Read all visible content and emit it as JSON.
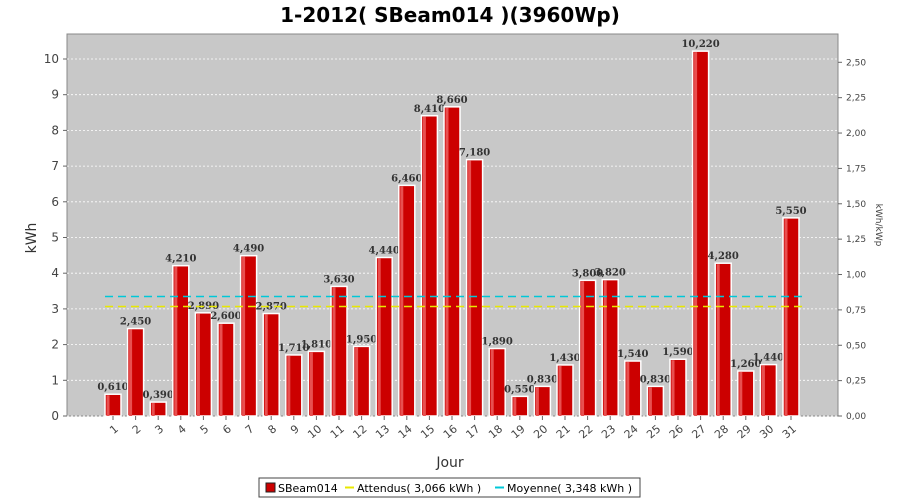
{
  "chart_data": {
    "type": "bar",
    "title": "1-2012( SBeam014 )(3960Wp)",
    "xlabel": "Jour",
    "ylabel": "kWh",
    "ylabel_right": "kWh/kWp",
    "ylim": [
      0,
      10.7
    ],
    "yticks": [
      "0",
      "1",
      "2",
      "3",
      "4",
      "5",
      "6",
      "7",
      "8",
      "9",
      "10"
    ],
    "ylim_right": [
      0,
      2.7
    ],
    "yticks_right": [
      "0,00",
      "0,25",
      "0,50",
      "0,75",
      "1,00",
      "1,25",
      "1,50",
      "1,75",
      "2,00",
      "2,25",
      "2,50"
    ],
    "grid": true,
    "categories": [
      "1",
      "2",
      "3",
      "4",
      "5",
      "6",
      "7",
      "8",
      "9",
      "10",
      "11",
      "12",
      "13",
      "14",
      "15",
      "16",
      "17",
      "18",
      "19",
      "20",
      "21",
      "22",
      "23",
      "24",
      "25",
      "26",
      "27",
      "28",
      "29",
      "30",
      "31"
    ],
    "series": [
      {
        "name": "SBeam014",
        "color": "#cc0000",
        "values": [
          0.61,
          2.45,
          0.39,
          4.21,
          2.89,
          2.6,
          4.49,
          2.87,
          1.71,
          1.81,
          3.63,
          1.95,
          4.44,
          6.46,
          8.41,
          8.66,
          7.18,
          1.89,
          0.55,
          0.83,
          1.43,
          3.8,
          3.82,
          1.54,
          0.83,
          1.59,
          10.22,
          4.28,
          1.26,
          1.44,
          5.55
        ],
        "labels": [
          "0,610",
          "2,450",
          "0,390",
          "4,210",
          "2,890",
          "2,600",
          "4,490",
          "2,870",
          "1,710",
          "1,810",
          "3,630",
          "1,950",
          "4,440",
          "6,460",
          "8,410",
          "8,660",
          "7,180",
          "1,890",
          "0,550",
          "0,830",
          "1,430",
          "3,800",
          "3,820",
          "1,540",
          "0,830",
          "1,590",
          "10,220",
          "4,280",
          "1,260",
          "1,440",
          "5,550"
        ]
      }
    ],
    "reference_lines": [
      {
        "name": "Attendus( 3,066 kWh )",
        "value": 3.066,
        "color": "#e8e800"
      },
      {
        "name": "Moyenne( 3,348 kWh )",
        "value": 3.348,
        "color": "#00c8d8"
      }
    ],
    "legend_position": "bottom",
    "plot_background": "#c8c8c8"
  }
}
